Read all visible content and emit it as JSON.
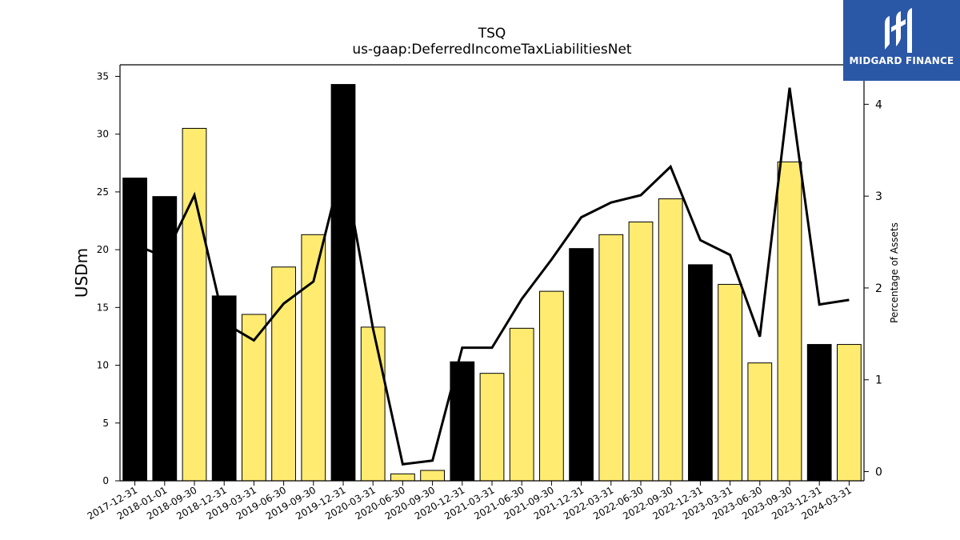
{
  "header": {
    "title": "TSQ",
    "subtitle": "us-gaap:DeferredIncomeTaxLiabilitiesNet"
  },
  "logo": {
    "text": "MIDGARD FINANCE",
    "background": "#2b57a7"
  },
  "colors": {
    "highlight_bar": "#000000",
    "regular_bar": "#ffeb70",
    "line": "#000000"
  },
  "chart_data": {
    "type": "bar",
    "title": "TSQ",
    "subtitle": "us-gaap:DeferredIncomeTaxLiabilitiesNet",
    "xlabel": "",
    "ylabel": "USDm",
    "y2label": "Percentage of Assets",
    "ylim": [
      0,
      36
    ],
    "y2lim": [
      -0.1,
      4.43
    ],
    "yticks": [
      0,
      5,
      10,
      15,
      20,
      25,
      30,
      35
    ],
    "y2ticks": [
      0,
      1,
      2,
      3,
      4
    ],
    "categories": [
      "2017-12-31",
      "2018-01-01",
      "2018-09-30",
      "2018-12-31",
      "2019-03-31",
      "2019-06-30",
      "2019-09-30",
      "2019-12-31",
      "2020-03-31",
      "2020-06-30",
      "2020-09-30",
      "2020-12-31",
      "2021-03-31",
      "2021-06-30",
      "2021-09-30",
      "2021-12-31",
      "2022-03-31",
      "2022-06-30",
      "2022-09-30",
      "2022-12-31",
      "2023-03-31",
      "2023-06-30",
      "2023-09-30",
      "2023-12-31",
      "2024-03-31"
    ],
    "series": [
      {
        "name": "USDm",
        "type": "bar",
        "values": [
          26.2,
          24.6,
          30.5,
          16.0,
          14.4,
          18.5,
          21.3,
          34.3,
          13.3,
          0.6,
          0.9,
          10.3,
          9.3,
          13.2,
          16.4,
          20.1,
          21.3,
          22.4,
          24.4,
          18.7,
          17.0,
          10.2,
          27.6,
          11.8,
          11.8
        ],
        "highlight": [
          true,
          true,
          false,
          true,
          false,
          false,
          false,
          true,
          false,
          false,
          false,
          true,
          false,
          false,
          false,
          true,
          false,
          false,
          false,
          true,
          false,
          false,
          false,
          true,
          false
        ]
      },
      {
        "name": "Percentage of Assets",
        "type": "line",
        "axis": "right",
        "values": [
          2.47,
          2.34,
          3.01,
          1.62,
          1.43,
          1.83,
          2.07,
          3.37,
          1.56,
          0.08,
          0.12,
          1.35,
          1.35,
          1.88,
          2.31,
          2.77,
          2.93,
          3.01,
          3.32,
          2.52,
          2.36,
          1.47,
          4.18,
          1.82,
          1.87
        ]
      }
    ],
    "grid": false,
    "legend": "none"
  }
}
